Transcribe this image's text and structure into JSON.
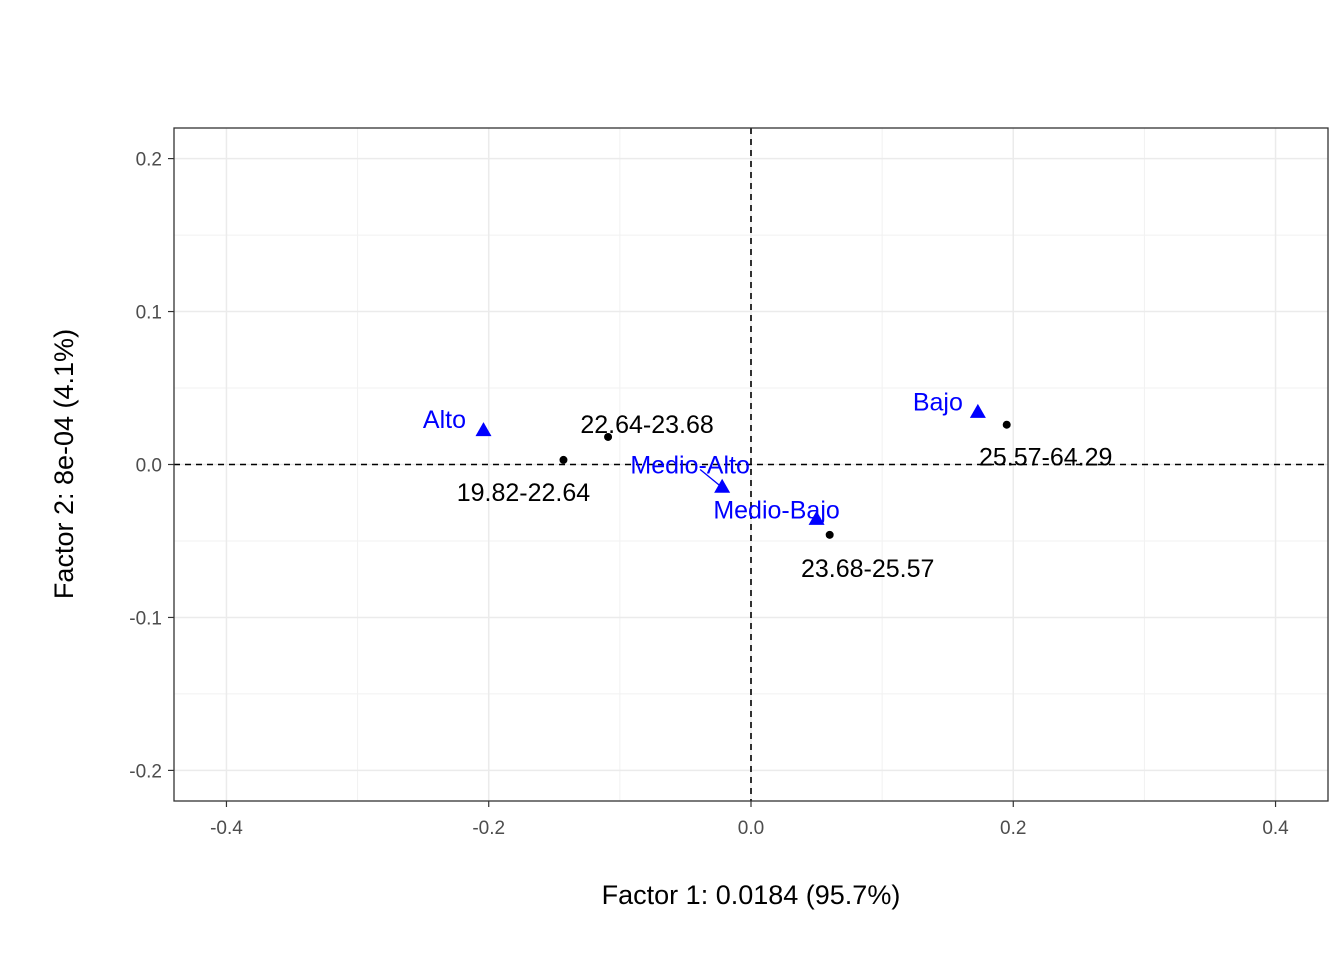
{
  "chart_data": {
    "type": "scatter",
    "xlabel": "Factor 1: 0.0184 (95.7%)",
    "ylabel": "Factor 2: 8e-04 (4.1%)",
    "xlim": [
      -0.44,
      0.44
    ],
    "ylim": [
      -0.22,
      0.22
    ],
    "x_ticks": [
      -0.4,
      -0.2,
      0.0,
      0.2,
      0.4
    ],
    "x_tick_labels": [
      "-0.4",
      "-0.2",
      "0.0",
      "0.2",
      "0.4"
    ],
    "y_ticks": [
      -0.2,
      -0.1,
      0.0,
      0.1,
      0.2
    ],
    "y_tick_labels": [
      "-0.2",
      "-0.1",
      "0.0",
      "0.1",
      "0.2"
    ],
    "grid": true,
    "reference_lines": {
      "x": 0,
      "y": 0,
      "style": "dashed"
    },
    "series": [
      {
        "marker": "triangle",
        "color": "#0000ff",
        "points": [
          {
            "label": "Alto",
            "x": -0.204,
            "y": 0.022
          },
          {
            "label": "Medio-Alto",
            "x": -0.022,
            "y": -0.015
          },
          {
            "label": "Medio-Bajo",
            "x": 0.05,
            "y": -0.036
          },
          {
            "label": "Bajo",
            "x": 0.173,
            "y": 0.034
          }
        ]
      },
      {
        "marker": "dot",
        "color": "#000000",
        "points": [
          {
            "label": "19.82-22.64",
            "x": -0.143,
            "y": 0.003
          },
          {
            "label": "22.64-23.68",
            "x": -0.109,
            "y": 0.018
          },
          {
            "label": "23.68-25.57",
            "x": 0.06,
            "y": -0.046
          },
          {
            "label": "25.57-64.29",
            "x": 0.195,
            "y": 0.026
          }
        ]
      }
    ]
  }
}
